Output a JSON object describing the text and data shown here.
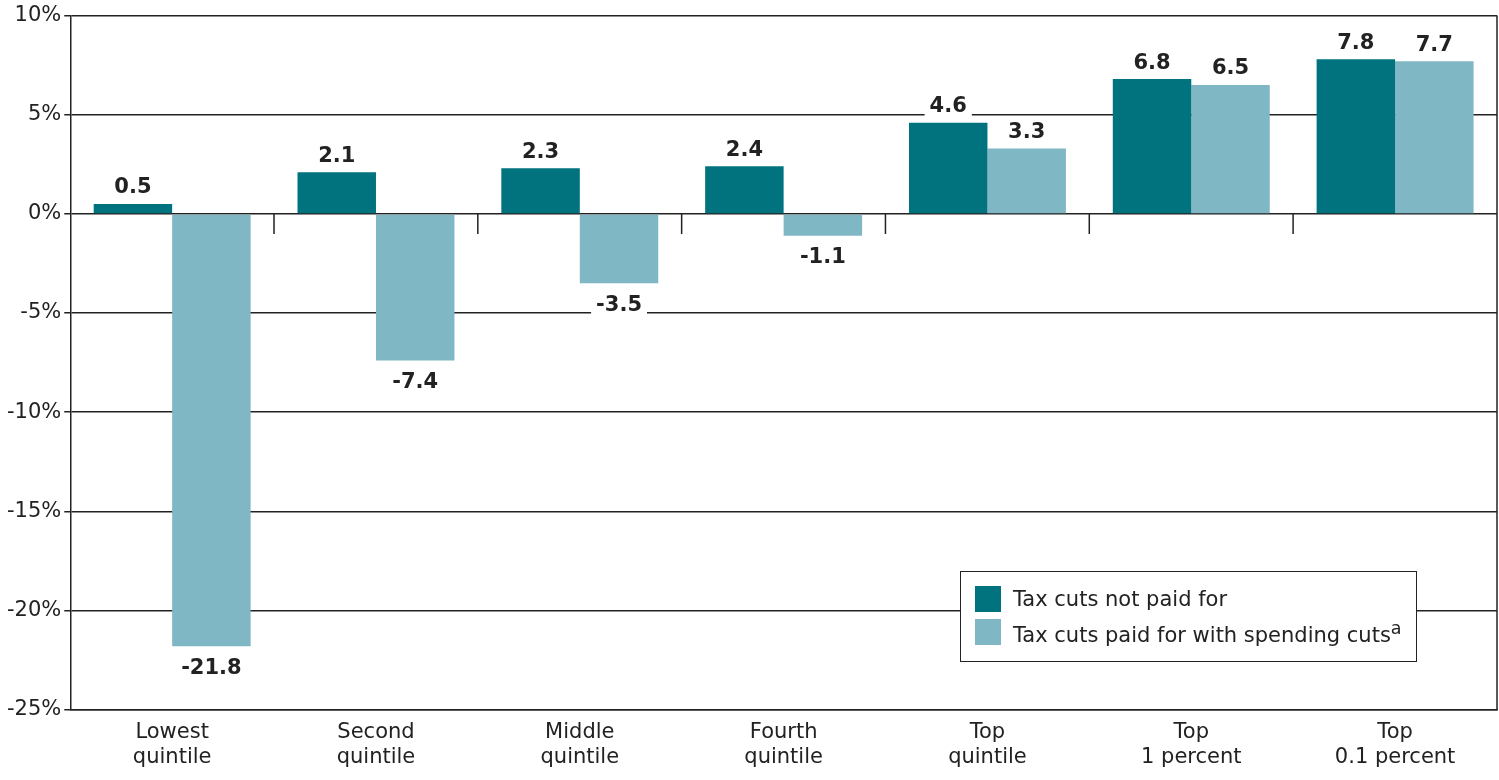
{
  "chart_data": {
    "type": "bar",
    "categories": [
      "Lowest quintile",
      "Second quintile",
      "Middle quintile",
      "Fourth quintile",
      "Top quintile",
      "Top 1 percent",
      "Top 0.1 percent"
    ],
    "series": [
      {
        "name": "Tax cuts not paid for",
        "color": "#00737f",
        "values": [
          0.5,
          2.1,
          2.3,
          2.4,
          4.6,
          6.8,
          7.8
        ]
      },
      {
        "name": "Tax cuts paid for with spending cuts$^{a}$",
        "color": "#7fb7c4",
        "values": [
          -21.8,
          -7.4,
          -3.5,
          -1.1,
          3.3,
          6.5,
          7.7
        ]
      }
    ],
    "ylim": [
      -25,
      10
    ],
    "yticks": [
      {
        "value": -25,
        "label": "-25%"
      },
      {
        "value": -20,
        "label": "-20%"
      },
      {
        "value": -15,
        "label": "-15%"
      },
      {
        "value": -10,
        "label": "-10%"
      },
      {
        "value": -5,
        "label": "-5%"
      },
      {
        "value": 0,
        "label": "0%"
      },
      {
        "value": 5,
        "label": "5%"
      },
      {
        "value": 10,
        "label": "10%"
      }
    ],
    "grid": "y",
    "legend": "bottom right",
    "data_labels": true
  }
}
